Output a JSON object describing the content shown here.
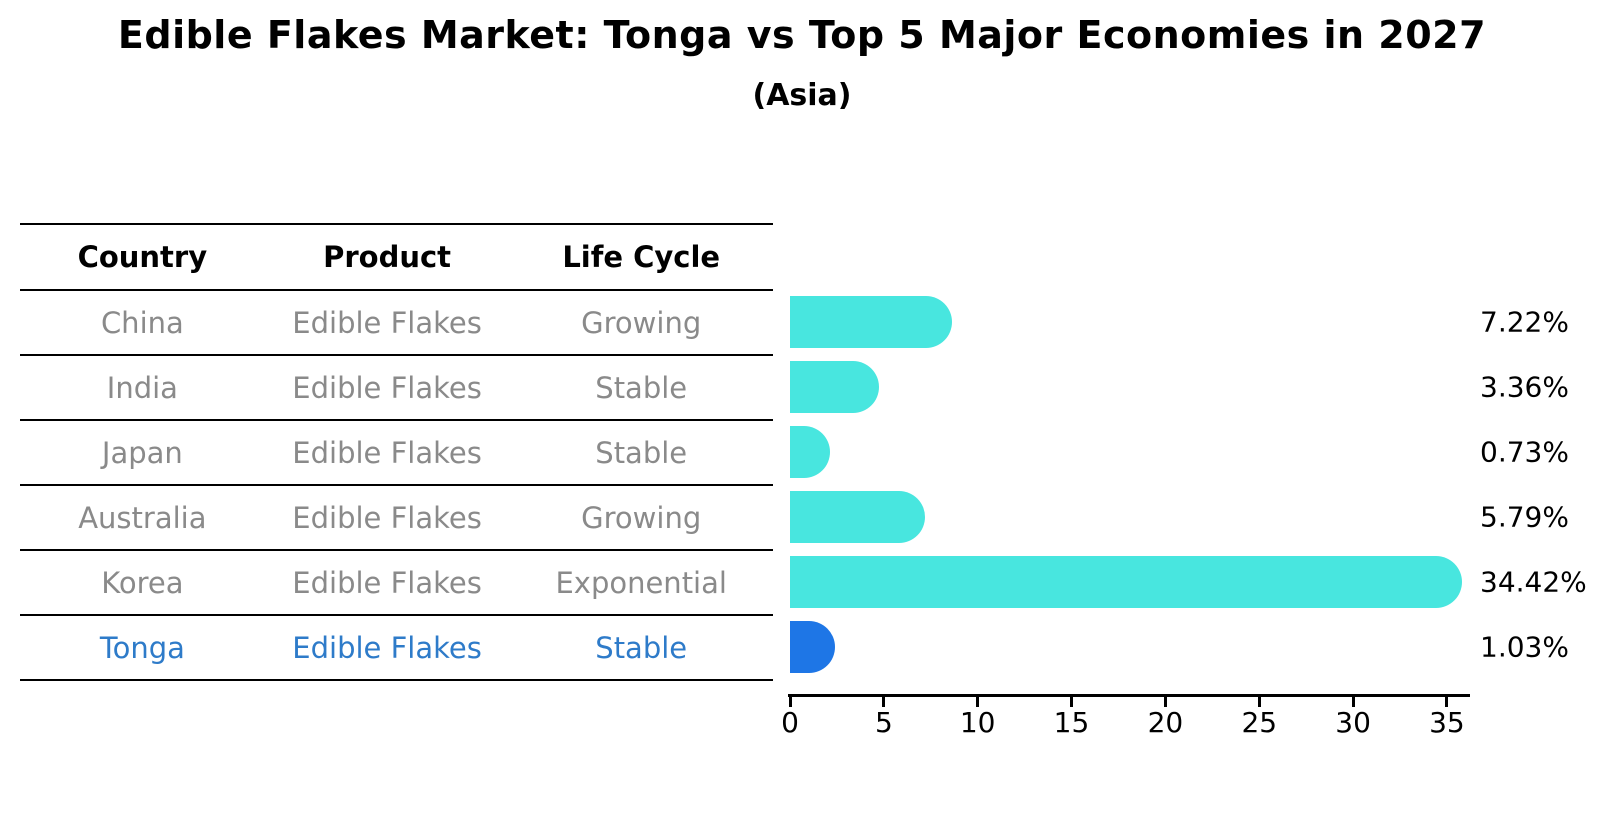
{
  "title": "Edible Flakes Market: Tonga vs Top 5 Major Economies in 2027",
  "subtitle": "(Asia)",
  "table": {
    "headers": [
      "Country",
      "Product",
      "Life Cycle"
    ],
    "rows": [
      {
        "country": "China",
        "product": "Edible Flakes",
        "life_cycle": "Growing",
        "highlight": false
      },
      {
        "country": "India",
        "product": "Edible Flakes",
        "life_cycle": "Stable",
        "highlight": false
      },
      {
        "country": "Japan",
        "product": "Edible Flakes",
        "life_cycle": "Stable",
        "highlight": false
      },
      {
        "country": "Australia",
        "product": "Edible Flakes",
        "life_cycle": "Growing",
        "highlight": false
      },
      {
        "country": "Korea",
        "product": "Edible Flakes",
        "life_cycle": "Exponential",
        "highlight": false
      },
      {
        "country": "Tonga",
        "product": "Edible Flakes",
        "life_cycle": "Stable",
        "highlight": true
      }
    ]
  },
  "chart_data": {
    "type": "bar",
    "orientation": "horizontal",
    "title": "Edible Flakes Market: Tonga vs Top 5 Major Economies in 2027",
    "subtitle": "(Asia)",
    "categories": [
      "China",
      "India",
      "Japan",
      "Australia",
      "Korea",
      "Tonga"
    ],
    "values": [
      7.22,
      3.36,
      0.73,
      5.79,
      34.42,
      1.03
    ],
    "value_labels": [
      "7.22%",
      "3.36%",
      "0.73%",
      "5.79%",
      "34.42%",
      "1.03%"
    ],
    "x_ticks": [
      0,
      5,
      10,
      15,
      20,
      25,
      30,
      35
    ],
    "xlim": [
      0,
      36.2
    ],
    "xlabel": "",
    "ylabel": "",
    "grid": false,
    "legend": null,
    "bar_color": "#48e6df",
    "highlight_color": "#1e76e6",
    "highlight_index": 5
  },
  "colors": {
    "bar_cyan": "#48e6df",
    "bar_blue": "#1e76e6",
    "highlight_text": "#2e7bc9",
    "muted_text": "#8a8a8a",
    "axis_black": "#000000"
  }
}
